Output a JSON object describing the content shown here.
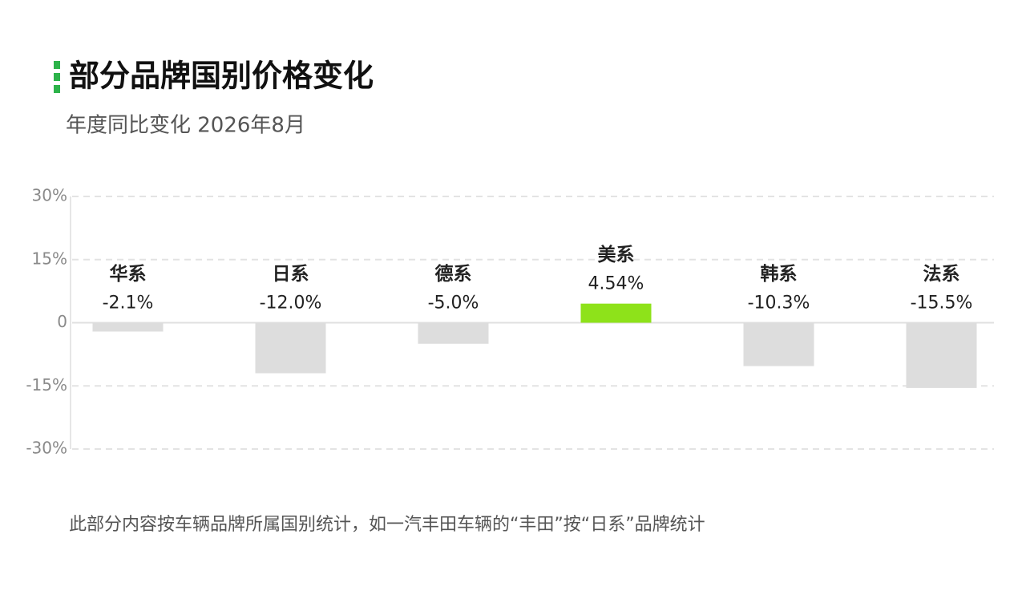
{
  "chart_data": {
    "type": "bar",
    "title": "部分品牌国别价格变化",
    "subtitle": "年度同比变化 2026年8月",
    "categories": [
      "华系",
      "日系",
      "德系",
      "美系",
      "韩系",
      "法系"
    ],
    "values": [
      -2.1,
      -12.0,
      -5.0,
      4.54,
      -10.3,
      -15.5
    ],
    "value_labels": [
      "-2.1%",
      "-12.0%",
      "-5.0%",
      "4.54%",
      "-10.3%",
      "-15.5%"
    ],
    "colors": [
      "#dddddd",
      "#dddddd",
      "#dddddd",
      "#8ee21a",
      "#dddddd",
      "#dddddd"
    ],
    "ylim": [
      -30,
      30
    ],
    "yticks": [
      {
        "value": -30,
        "label": "-30%"
      },
      {
        "value": -15,
        "label": "-15%"
      },
      0,
      {
        "value": 15,
        "label": "15%"
      },
      {
        "value": 30,
        "label": "30%"
      }
    ],
    "grid": true,
    "note": "此部分内容按车辆品牌所属国别统计，如一汽丰田车辆的“丰田”按“日系”品牌统计"
  }
}
